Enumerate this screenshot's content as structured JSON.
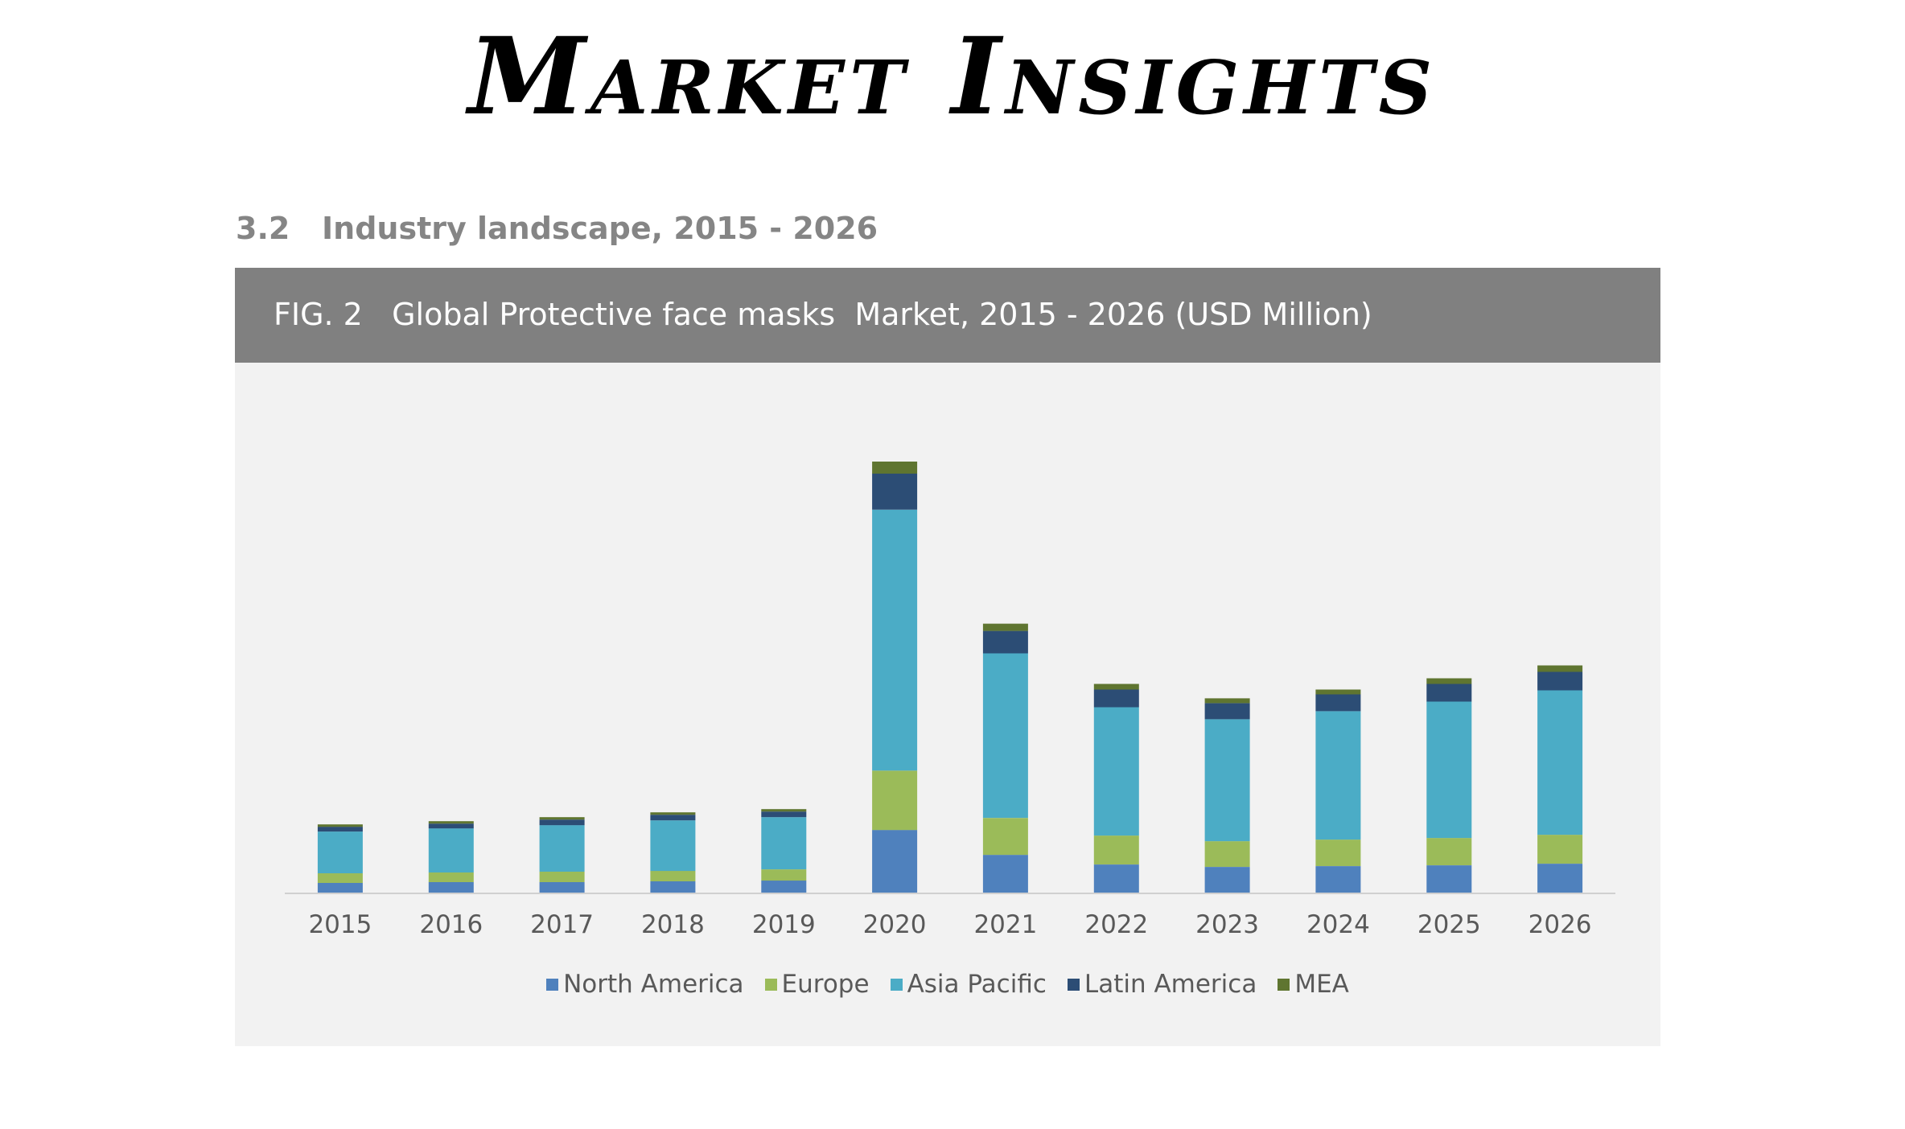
{
  "page": {
    "title": "Market Insights",
    "section_heading": "3.2   Industry landscape, 2015 - 2026",
    "figure_title": "FIG. 2   Global Protective face masks  Market, 2015 - 2026 (USD Million)"
  },
  "colors": {
    "header_bg": "#808080",
    "panel_bg": "#f2f2f2",
    "North America": "#4f81bd",
    "Europe": "#9bbb59",
    "Asia Pacific": "#4bacc6",
    "Latin America": "#2c4d75",
    "MEA": "#5f7530"
  },
  "chart_data": {
    "type": "bar",
    "stacked": true,
    "categories": [
      "2015",
      "2016",
      "2017",
      "2018",
      "2019",
      "2020",
      "2021",
      "2022",
      "2023",
      "2024",
      "2025",
      "2026"
    ],
    "series": [
      {
        "name": "North America",
        "values": [
          12,
          13,
          13,
          14,
          15,
          78,
          47,
          35,
          32,
          33,
          34,
          36
        ]
      },
      {
        "name": "Europe",
        "values": [
          12,
          12,
          13,
          13,
          14,
          74,
          46,
          36,
          32,
          33,
          34,
          36
        ]
      },
      {
        "name": "Asia Pacific",
        "values": [
          52,
          55,
          58,
          63,
          65,
          325,
          205,
          160,
          152,
          160,
          170,
          180
        ]
      },
      {
        "name": "Latin America",
        "values": [
          6,
          6,
          7,
          7,
          7,
          45,
          28,
          22,
          20,
          21,
          22,
          23
        ]
      },
      {
        "name": "MEA",
        "values": [
          3,
          3,
          3,
          3,
          3,
          15,
          9,
          7,
          6,
          6,
          7,
          8
        ]
      }
    ],
    "legend_position": "bottom",
    "grid": false,
    "ylim": [
      0,
      560
    ]
  }
}
